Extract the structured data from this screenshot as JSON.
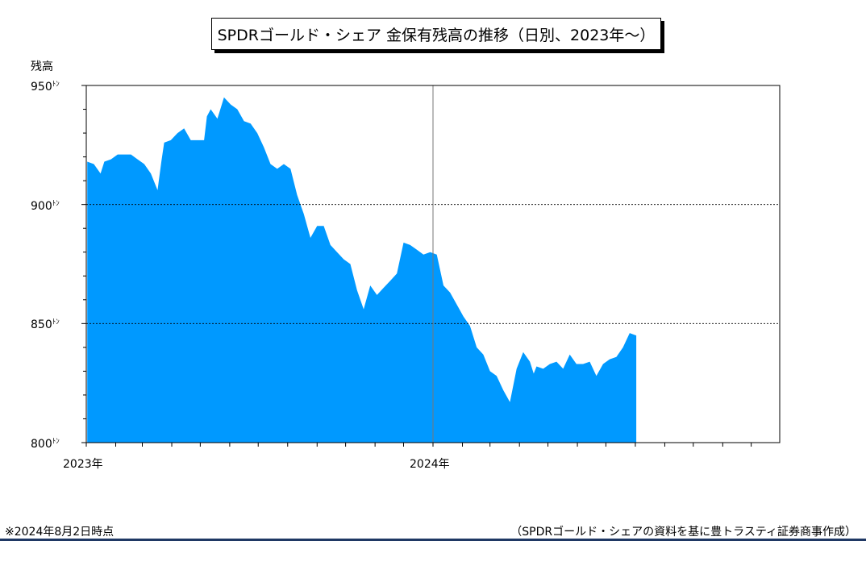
{
  "chart_data": {
    "type": "area",
    "title": "SPDRゴールド・シェア 金保有残高の推移（日別、2023年～）",
    "ylabel": "残高",
    "yunit": "ﾄﾝ",
    "ylim": [
      800,
      950
    ],
    "yticks": [
      800,
      850,
      900,
      950
    ],
    "xlim": [
      "2023-01-01",
      "2024-12-31"
    ],
    "xtick_labels": [
      {
        "date": "2023-01-01",
        "label": "2023年"
      },
      {
        "date": "2024-01-01",
        "label": "2024年"
      }
    ],
    "hgrid": [
      850,
      900
    ],
    "color": "#0099ff",
    "series": [
      {
        "x": [
          "2023-01-02",
          "2023-01-09",
          "2023-01-16",
          "2023-01-20",
          "2023-01-27",
          "2023-02-03",
          "2023-02-10",
          "2023-02-17",
          "2023-02-24",
          "2023-03-03",
          "2023-03-10",
          "2023-03-17",
          "2023-03-21",
          "2023-03-24",
          "2023-03-31",
          "2023-04-07",
          "2023-04-14",
          "2023-04-21",
          "2023-04-28",
          "2023-05-05",
          "2023-05-08",
          "2023-05-12",
          "2023-05-19",
          "2023-05-26",
          "2023-06-02",
          "2023-06-09",
          "2023-06-16",
          "2023-06-23",
          "2023-06-30",
          "2023-07-07",
          "2023-07-14",
          "2023-07-21",
          "2023-07-28",
          "2023-08-04",
          "2023-08-11",
          "2023-08-18",
          "2023-08-25",
          "2023-09-01",
          "2023-09-08",
          "2023-09-15",
          "2023-09-22",
          "2023-09-29",
          "2023-10-06",
          "2023-10-13",
          "2023-10-20",
          "2023-10-27",
          "2023-11-03",
          "2023-11-10",
          "2023-11-17",
          "2023-11-24",
          "2023-12-01",
          "2023-12-08",
          "2023-12-15",
          "2023-12-22",
          "2023-12-29",
          "2024-01-05",
          "2024-01-12",
          "2024-01-19",
          "2024-01-26",
          "2024-02-02",
          "2024-02-09",
          "2024-02-16",
          "2024-02-23",
          "2024-03-01",
          "2024-03-08",
          "2024-03-15",
          "2024-03-22",
          "2024-03-29",
          "2024-04-05",
          "2024-04-12",
          "2024-04-16",
          "2024-04-19",
          "2024-04-26",
          "2024-05-03",
          "2024-05-10",
          "2024-05-17",
          "2024-05-24",
          "2024-05-31",
          "2024-06-07",
          "2024-06-14",
          "2024-06-21",
          "2024-06-28",
          "2024-07-05",
          "2024-07-12",
          "2024-07-19",
          "2024-07-26",
          "2024-08-02"
        ],
        "values": [
          918,
          917,
          913,
          918,
          919,
          921,
          921,
          921,
          919,
          917,
          913,
          906,
          918,
          926,
          927,
          930,
          932,
          927,
          927,
          927,
          937,
          940,
          936,
          945,
          942,
          940,
          935,
          934,
          930,
          924,
          917,
          915,
          917,
          915,
          904,
          896,
          886,
          891,
          891,
          883,
          880,
          877,
          875,
          864,
          856,
          866,
          862,
          865,
          868,
          871,
          884,
          883,
          881,
          879,
          880,
          879,
          866,
          863,
          858,
          853,
          849,
          840,
          837,
          830,
          828,
          822,
          817,
          831,
          838,
          834,
          829,
          832,
          831,
          833,
          834,
          831,
          837,
          833,
          833,
          834,
          828,
          833,
          835,
          836,
          840,
          846,
          845
        ]
      }
    ]
  },
  "notes": {
    "asof": "※2024年8月2日時点",
    "source": "（SPDRゴールド・シェアの資料を基に豊トラスティ証券商事作成）"
  }
}
